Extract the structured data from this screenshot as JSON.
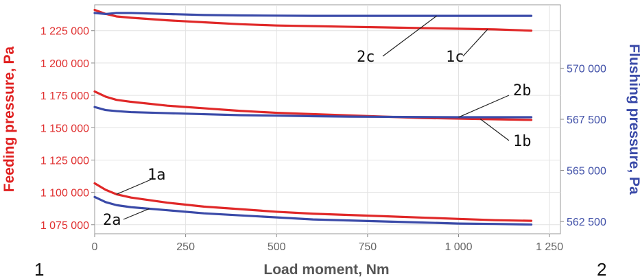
{
  "chart_data": {
    "type": "line",
    "xlabel": "Load moment, Nm",
    "ylabel_left": "Feeding pressure, Pa",
    "ylabel_right": "Flushing pressure, Pa",
    "x_ticks": [
      "0",
      "250",
      "500",
      "750",
      "1 000",
      "1 250"
    ],
    "x_tick_values": [
      0,
      250,
      500,
      750,
      1000,
      1250
    ],
    "y_left_ticks": [
      "1 075 000",
      "1 100 000",
      "1 125 000",
      "1 150 000",
      "1 175 000",
      "1 200 000",
      "1 225 000"
    ],
    "y_left_tick_values": [
      1075000,
      1100000,
      1125000,
      1150000,
      1175000,
      1200000,
      1225000
    ],
    "y_right_ticks": [
      "562 500",
      "565 000",
      "567 500",
      "570 000"
    ],
    "y_right_tick_values": [
      562500,
      565000,
      567500,
      570000
    ],
    "xlim": [
      0,
      1280
    ],
    "ylim_left": [
      1068000,
      1245000
    ],
    "ylim_right": [
      561900,
      573100
    ],
    "grid": true,
    "colors": {
      "feeding": "#e02828",
      "flushing": "#3a4aa8"
    },
    "series": [
      {
        "name": "1a",
        "axis": "left",
        "color": "#e02828",
        "x": [
          0,
          30,
          60,
          100,
          200,
          300,
          400,
          500,
          600,
          700,
          800,
          900,
          1000,
          1100,
          1200
        ],
        "y": [
          1107000,
          1102000,
          1098500,
          1096000,
          1092000,
          1089000,
          1087000,
          1085000,
          1083500,
          1082500,
          1081500,
          1080500,
          1079500,
          1078500,
          1078000
        ]
      },
      {
        "name": "2a",
        "axis": "right",
        "color": "#3a4aa8",
        "x": [
          0,
          30,
          60,
          100,
          200,
          300,
          400,
          500,
          600,
          700,
          800,
          900,
          1000,
          1100,
          1200
        ],
        "y": [
          563700,
          563450,
          563300,
          563200,
          563050,
          562900,
          562800,
          562700,
          562600,
          562550,
          562500,
          562450,
          562400,
          562380,
          562350
        ]
      },
      {
        "name": "1b",
        "axis": "left",
        "color": "#e02828",
        "x": [
          0,
          30,
          60,
          100,
          200,
          300,
          400,
          500,
          600,
          700,
          800,
          900,
          1000,
          1100,
          1200
        ],
        "y": [
          1178000,
          1174000,
          1171500,
          1170000,
          1167000,
          1165000,
          1163000,
          1161500,
          1160500,
          1159500,
          1158500,
          1157500,
          1157000,
          1156500,
          1156000
        ]
      },
      {
        "name": "2b",
        "axis": "right",
        "color": "#3a4aa8",
        "x": [
          0,
          30,
          60,
          100,
          200,
          300,
          400,
          500,
          600,
          700,
          800,
          900,
          1000,
          1100,
          1200
        ],
        "y": [
          568100,
          567950,
          567900,
          567850,
          567800,
          567750,
          567700,
          567680,
          567650,
          567630,
          567620,
          567610,
          567600,
          567600,
          567600
        ]
      },
      {
        "name": "1c",
        "axis": "left",
        "color": "#e02828",
        "x": [
          0,
          30,
          60,
          100,
          200,
          300,
          400,
          500,
          600,
          700,
          800,
          900,
          1000,
          1100,
          1200
        ],
        "y": [
          1241000,
          1238000,
          1236000,
          1235000,
          1233000,
          1231500,
          1230000,
          1229000,
          1228500,
          1228000,
          1227500,
          1227000,
          1226500,
          1226000,
          1225000
        ]
      },
      {
        "name": "2c",
        "axis": "right",
        "color": "#3a4aa8",
        "x": [
          0,
          30,
          60,
          100,
          200,
          300,
          400,
          500,
          600,
          700,
          800,
          900,
          1000,
          1100,
          1200
        ],
        "y": [
          572700,
          572650,
          572700,
          572700,
          572650,
          572600,
          572580,
          572570,
          572560,
          572560,
          572560,
          572560,
          572560,
          572560,
          572560
        ]
      }
    ],
    "annotations": [
      {
        "text": "1a",
        "series": "1a"
      },
      {
        "text": "2a",
        "series": "2a"
      },
      {
        "text": "1b",
        "series": "1b"
      },
      {
        "text": "2b",
        "series": "2b"
      },
      {
        "text": "1c",
        "series": "1c"
      },
      {
        "text": "2c",
        "series": "2c"
      }
    ],
    "corner_labels": [
      "1",
      "2"
    ]
  }
}
